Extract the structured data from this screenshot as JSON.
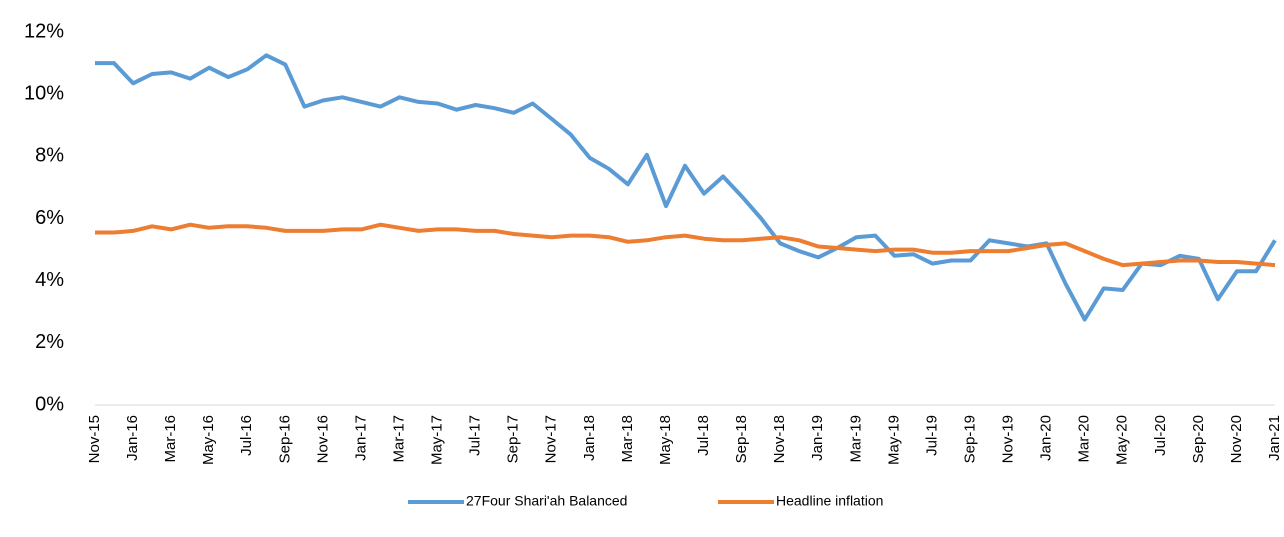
{
  "chart_data": {
    "type": "line",
    "categories": [
      "Nov-15",
      null,
      "Jan-16",
      null,
      "Mar-16",
      null,
      "May-16",
      null,
      "Jul-16",
      null,
      "Sep-16",
      null,
      "Nov-16",
      null,
      "Jan-17",
      null,
      "Mar-17",
      null,
      "May-17",
      null,
      "Jul-17",
      null,
      "Sep-17",
      null,
      "Nov-17",
      null,
      "Jan-18",
      null,
      "Mar-18",
      null,
      "May-18",
      null,
      "Jul-18",
      null,
      "Sep-18",
      null,
      "Nov-18",
      null,
      "Jan-19",
      null,
      "Mar-19",
      null,
      "May-19",
      null,
      "Jul-19",
      null,
      "Sep-19",
      null,
      "Nov-19",
      null,
      "Jan-20",
      null,
      "Mar-20",
      null,
      "May-20",
      null,
      "Jul-20",
      null,
      "Sep-20",
      null,
      "Nov-20",
      null,
      "Jan-21"
    ],
    "series": [
      {
        "name": "27Four Shari'ah Balanced",
        "color": "#5b9bd5",
        "values": [
          11.0,
          11.0,
          10.35,
          10.65,
          10.7,
          10.5,
          10.85,
          10.55,
          10.8,
          11.25,
          10.95,
          9.6,
          9.8,
          9.9,
          9.75,
          9.6,
          9.9,
          9.75,
          9.7,
          9.5,
          9.65,
          9.55,
          9.4,
          9.7,
          9.2,
          8.7,
          7.95,
          7.6,
          7.1,
          8.05,
          6.4,
          7.7,
          6.8,
          7.35,
          6.7,
          6.0,
          5.2,
          4.95,
          4.75,
          5.05,
          5.4,
          5.45,
          4.8,
          4.85,
          4.55,
          4.65,
          4.65,
          5.3,
          5.2,
          5.1,
          5.2,
          3.9,
          2.75,
          3.75,
          3.7,
          4.55,
          4.5,
          4.8,
          4.7,
          3.4,
          4.3,
          4.3,
          5.3
        ]
      },
      {
        "name": "Headline inflation",
        "color": "#ed7d31",
        "values": [
          5.55,
          5.55,
          5.6,
          5.75,
          5.65,
          5.8,
          5.7,
          5.75,
          5.75,
          5.7,
          5.6,
          5.6,
          5.6,
          5.65,
          5.65,
          5.8,
          5.7,
          5.6,
          5.65,
          5.65,
          5.6,
          5.6,
          5.5,
          5.45,
          5.4,
          5.45,
          5.45,
          5.4,
          5.25,
          5.3,
          5.4,
          5.45,
          5.35,
          5.3,
          5.3,
          5.35,
          5.4,
          5.3,
          5.1,
          5.05,
          5.0,
          4.95,
          5.0,
          5.0,
          4.9,
          4.9,
          4.95,
          4.95,
          4.95,
          5.05,
          5.15,
          5.2,
          4.95,
          4.7,
          4.5,
          4.55,
          4.6,
          4.65,
          4.65,
          4.6,
          4.6,
          4.55,
          4.5
        ]
      }
    ],
    "ylim": [
      0,
      12
    ],
    "yticks": [
      {
        "value": 0,
        "label": "0%"
      },
      {
        "value": 2,
        "label": "2%"
      },
      {
        "value": 4,
        "label": "4%"
      },
      {
        "value": 6,
        "label": "6%"
      },
      {
        "value": 8,
        "label": "8%"
      },
      {
        "value": 10,
        "label": "10%"
      },
      {
        "value": 12,
        "label": "12%"
      }
    ],
    "grid": false,
    "legend": "bottom"
  }
}
